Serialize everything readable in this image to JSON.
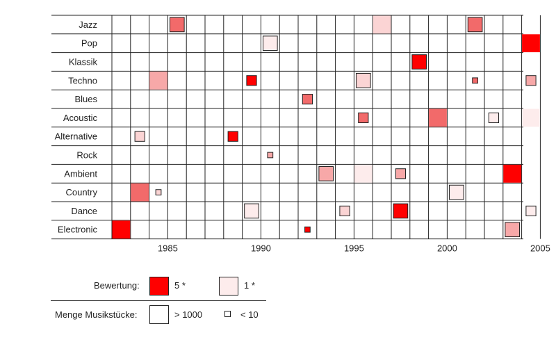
{
  "chart_data": {
    "type": "heatmap",
    "title": "",
    "xlabel": "",
    "ylabel": "",
    "x_range": [
      1983,
      2005
    ],
    "x_ticks": [
      1985,
      1990,
      1995,
      2000,
      2005
    ],
    "genres": [
      "Jazz",
      "Pop",
      "Klassik",
      "Techno",
      "Blues",
      "Acoustic",
      "Alternative",
      "Rock",
      "Ambient",
      "Country",
      "Dance",
      "Electronic"
    ],
    "cell_colors": {
      "5": "#ff0000",
      "4": "#f26a6a",
      "3": "#f7a8a8",
      "2": "#fbd4d4",
      "1": "#fdecec"
    },
    "cells": [
      {
        "genre": "Jazz",
        "year": 1986,
        "rating": 4,
        "tracks_level": 0.8
      },
      {
        "genre": "Jazz",
        "year": 1997,
        "rating": 2,
        "tracks_level": 1.0
      },
      {
        "genre": "Jazz",
        "year": 2002,
        "rating": 4,
        "tracks_level": 0.8
      },
      {
        "genre": "Pop",
        "year": 1991,
        "rating": 1,
        "tracks_level": 0.8
      },
      {
        "genre": "Pop",
        "year": 2005,
        "rating": 5,
        "tracks_level": 1.0
      },
      {
        "genre": "Klassik",
        "year": 1999,
        "rating": 5,
        "tracks_level": 0.8
      },
      {
        "genre": "Techno",
        "year": 1985,
        "rating": 3,
        "tracks_level": 1.0
      },
      {
        "genre": "Techno",
        "year": 1990,
        "rating": 5,
        "tracks_level": 0.55
      },
      {
        "genre": "Techno",
        "year": 1996,
        "rating": 2,
        "tracks_level": 0.8
      },
      {
        "genre": "Techno",
        "year": 2002,
        "rating": 4,
        "tracks_level": 0.3
      },
      {
        "genre": "Techno",
        "year": 2005,
        "rating": 3,
        "tracks_level": 0.55
      },
      {
        "genre": "Blues",
        "year": 1993,
        "rating": 4,
        "tracks_level": 0.55
      },
      {
        "genre": "Acoustic",
        "year": 1996,
        "rating": 4,
        "tracks_level": 0.55
      },
      {
        "genre": "Acoustic",
        "year": 2000,
        "rating": 4,
        "tracks_level": 1.0
      },
      {
        "genre": "Acoustic",
        "year": 2003,
        "rating": 1,
        "tracks_level": 0.55
      },
      {
        "genre": "Acoustic",
        "year": 2005,
        "rating": 1,
        "tracks_level": 1.0
      },
      {
        "genre": "Alternative",
        "year": 1984,
        "rating": 2,
        "tracks_level": 0.55
      },
      {
        "genre": "Alternative",
        "year": 1989,
        "rating": 5,
        "tracks_level": 0.55
      },
      {
        "genre": "Rock",
        "year": 1991,
        "rating": 3,
        "tracks_level": 0.3
      },
      {
        "genre": "Ambient",
        "year": 1994,
        "rating": 3,
        "tracks_level": 0.8
      },
      {
        "genre": "Ambient",
        "year": 1996,
        "rating": 1,
        "tracks_level": 1.0
      },
      {
        "genre": "Ambient",
        "year": 1998,
        "rating": 3,
        "tracks_level": 0.55
      },
      {
        "genre": "Ambient",
        "year": 2004,
        "rating": 5,
        "tracks_level": 1.0
      },
      {
        "genre": "Country",
        "year": 1984,
        "rating": 4,
        "tracks_level": 1.0
      },
      {
        "genre": "Country",
        "year": 1985,
        "rating": 2,
        "tracks_level": 0.3
      },
      {
        "genre": "Country",
        "year": 2001,
        "rating": 1,
        "tracks_level": 0.8
      },
      {
        "genre": "Dance",
        "year": 1990,
        "rating": 1,
        "tracks_level": 0.8
      },
      {
        "genre": "Dance",
        "year": 1995,
        "rating": 2,
        "tracks_level": 0.55
      },
      {
        "genre": "Dance",
        "year": 1998,
        "rating": 5,
        "tracks_level": 0.8
      },
      {
        "genre": "Dance",
        "year": 2005,
        "rating": 1,
        "tracks_level": 0.55
      },
      {
        "genre": "Electronic",
        "year": 1983,
        "rating": 5,
        "tracks_level": 1.0
      },
      {
        "genre": "Electronic",
        "year": 1993,
        "rating": 5,
        "tracks_level": 0.3
      },
      {
        "genre": "Electronic",
        "year": 2004,
        "rating": 3,
        "tracks_level": 0.8
      }
    ],
    "grid": true,
    "legend_position": "bottom-left"
  },
  "legend": {
    "rating_label": "Bewertung:",
    "rating_high": "5 *",
    "rating_low": "1 *",
    "rating_high_color": "#ff0000",
    "rating_low_color": "#fdecec",
    "tracks_label": "Menge Musikstücke:",
    "tracks_high": "> 1000",
    "tracks_low": "< 10"
  }
}
